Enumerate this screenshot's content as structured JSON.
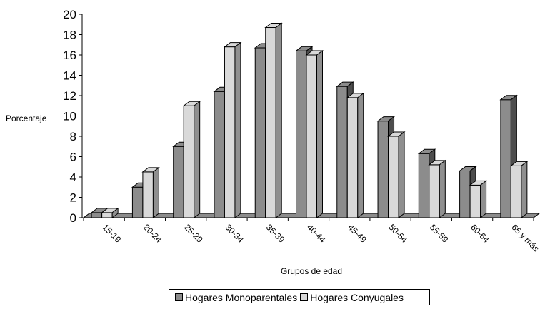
{
  "chart_data": {
    "type": "bar",
    "categories": [
      "15-19",
      "20-24",
      "25-29",
      "30-34",
      "35-39",
      "40-44",
      "45-49",
      "50-54",
      "55-59",
      "60-64",
      "65 y más"
    ],
    "series": [
      {
        "name": "Hogares Monoparentales",
        "values": [
          0.5,
          3.0,
          7.0,
          12.4,
          16.7,
          16.4,
          12.9,
          9.5,
          6.3,
          4.6,
          11.6
        ],
        "color": "#8c8c8c"
      },
      {
        "name": "Hogares Conyugales",
        "values": [
          0.5,
          4.5,
          11.0,
          16.8,
          18.7,
          16.0,
          11.8,
          8.0,
          5.2,
          3.2,
          5.1
        ],
        "color": "#d9d9d9"
      }
    ],
    "xlabel": "Grupos de edad",
    "ylabel": "Porcentaje",
    "ylim": [
      0,
      20
    ],
    "yticks": [
      0,
      2,
      4,
      6,
      8,
      10,
      12,
      14,
      16,
      18,
      20
    ],
    "grid": false,
    "legend": "bottom"
  }
}
